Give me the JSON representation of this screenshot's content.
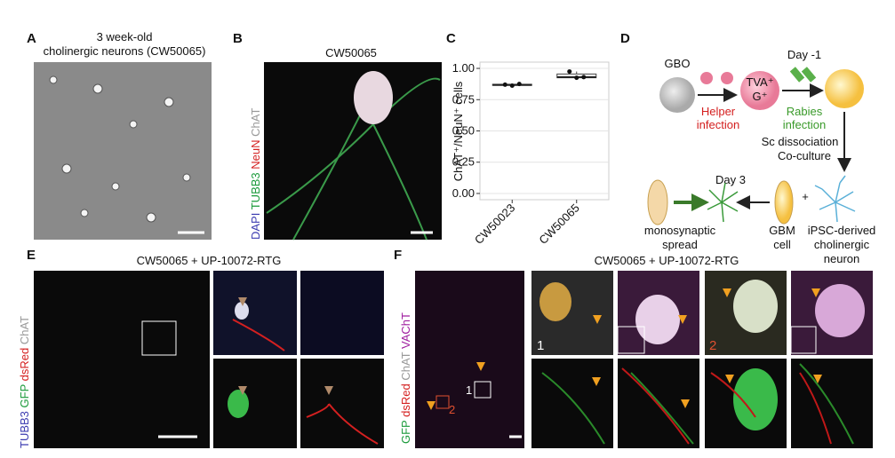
{
  "panels": {
    "a": {
      "label": "A",
      "title": [
        "3 week-old",
        "cholinergic neurons (CW50065)"
      ]
    },
    "b": {
      "label": "B",
      "title": "CW50065",
      "stains": [
        {
          "name": "DAPI",
          "color": "#3b3bb0"
        },
        {
          "name": "TUBB3",
          "color": "#1a9a3a"
        },
        {
          "name": "NeuN",
          "color": "#d42020"
        },
        {
          "name": "ChAT",
          "color": "#999999"
        }
      ]
    },
    "c": {
      "label": "C",
      "type": "box",
      "ylabel": "ChAT⁺/NeuN⁺ cells",
      "categories": [
        "CW50023",
        "CW50065"
      ],
      "points": [
        [
          0.87,
          0.862,
          0.875
        ],
        [
          0.975,
          0.925,
          0.93
        ]
      ],
      "box": [
        {
          "q1": 0.864,
          "median": 0.868,
          "q3": 0.873
        },
        {
          "q1": 0.925,
          "median": 0.93,
          "q3": 0.955
        }
      ],
      "whisker_high": [
        0.875,
        0.975
      ],
      "ylim": [
        -0.05,
        1.05
      ],
      "yticks": [
        {
          "value": 0,
          "label": "0.00"
        },
        {
          "value": 0.25,
          "label": "0.25"
        },
        {
          "value": 0.5,
          "label": "0.50"
        },
        {
          "value": 0.75,
          "label": "0.75"
        },
        {
          "value": 1,
          "label": "1.00"
        }
      ],
      "grid": true
    },
    "d": {
      "label": "D",
      "gbo": "GBO",
      "helper": [
        "Helper",
        "infection"
      ],
      "tva": "TVA⁺",
      "g": "G⁺",
      "day_minus1": "Day -1",
      "rabies": [
        "Rabies",
        "infection"
      ],
      "dissociation": [
        "Sc dissociation",
        "Co-culture"
      ],
      "day3": "Day 3",
      "plus": "+",
      "spread": [
        "monosynaptic",
        "spread"
      ],
      "gbm": [
        "GBM",
        "cell"
      ],
      "neuron": [
        "iPSC-derived",
        "cholinergic",
        "neuron"
      ]
    },
    "e": {
      "label": "E",
      "title": "CW50065 + UP-10072-RTG",
      "stains": [
        {
          "name": "TUBB3",
          "color": "#3b3bb0"
        },
        {
          "name": "GFP",
          "color": "#1a9a3a"
        },
        {
          "name": "dsRed",
          "color": "#d42020"
        },
        {
          "name": "ChAT",
          "color": "#999999"
        }
      ]
    },
    "f": {
      "label": "F",
      "title": "CW50065 + UP-10072-RTG",
      "stains": [
        {
          "name": "GFP",
          "color": "#1a9a3a"
        },
        {
          "name": "dsRed",
          "color": "#d42020"
        },
        {
          "name": "ChAT",
          "color": "#999999"
        },
        {
          "name": "VAChT",
          "color": "#a020a0"
        }
      ],
      "insets": [
        "1",
        "2"
      ]
    }
  }
}
